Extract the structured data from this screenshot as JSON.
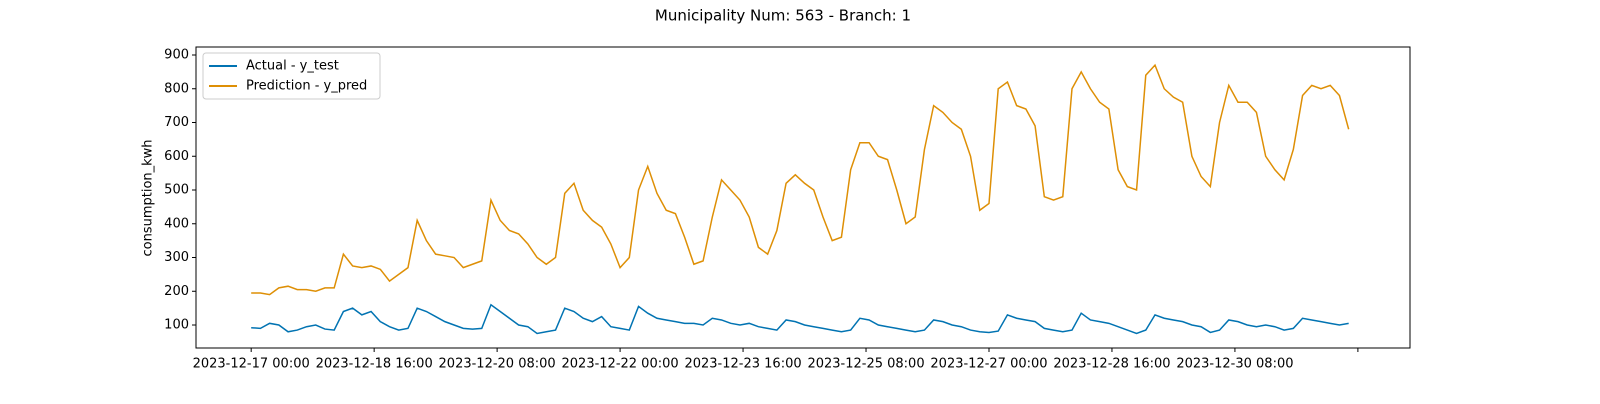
{
  "chart_data": {
    "type": "line",
    "title": "Municipality Num: 563 - Branch: 1",
    "ylabel": "consumption_kwh",
    "x": [
      "2023-12-17 00:00",
      "2023-12-17 03:00",
      "2023-12-17 06:00",
      "2023-12-17 09:00",
      "2023-12-17 12:00",
      "2023-12-17 15:00",
      "2023-12-17 18:00",
      "2023-12-17 21:00",
      "2023-12-18 00:00",
      "2023-12-18 03:00",
      "2023-12-18 06:00",
      "2023-12-18 09:00",
      "2023-12-18 12:00",
      "2023-12-18 15:00",
      "2023-12-18 18:00",
      "2023-12-18 21:00",
      "2023-12-19 00:00",
      "2023-12-19 03:00",
      "2023-12-19 06:00",
      "2023-12-19 09:00",
      "2023-12-19 12:00",
      "2023-12-19 15:00",
      "2023-12-19 18:00",
      "2023-12-19 21:00",
      "2023-12-20 00:00",
      "2023-12-20 03:00",
      "2023-12-20 06:00",
      "2023-12-20 09:00",
      "2023-12-20 12:00",
      "2023-12-20 15:00",
      "2023-12-20 18:00",
      "2023-12-20 21:00",
      "2023-12-21 00:00",
      "2023-12-21 03:00",
      "2023-12-21 06:00",
      "2023-12-21 09:00",
      "2023-12-21 12:00",
      "2023-12-21 15:00",
      "2023-12-21 18:00",
      "2023-12-21 21:00",
      "2023-12-22 00:00",
      "2023-12-22 03:00",
      "2023-12-22 06:00",
      "2023-12-22 09:00",
      "2023-12-22 12:00",
      "2023-12-22 15:00",
      "2023-12-22 18:00",
      "2023-12-22 21:00",
      "2023-12-23 00:00",
      "2023-12-23 03:00",
      "2023-12-23 06:00",
      "2023-12-23 09:00",
      "2023-12-23 12:00",
      "2023-12-23 15:00",
      "2023-12-23 18:00",
      "2023-12-23 21:00",
      "2023-12-24 00:00",
      "2023-12-24 03:00",
      "2023-12-24 06:00",
      "2023-12-24 09:00",
      "2023-12-24 12:00",
      "2023-12-24 15:00",
      "2023-12-24 18:00",
      "2023-12-24 21:00",
      "2023-12-25 00:00",
      "2023-12-25 03:00",
      "2023-12-25 06:00",
      "2023-12-25 09:00",
      "2023-12-25 12:00",
      "2023-12-25 15:00",
      "2023-12-25 18:00",
      "2023-12-25 21:00",
      "2023-12-26 00:00",
      "2023-12-26 03:00",
      "2023-12-26 06:00",
      "2023-12-26 09:00",
      "2023-12-26 12:00",
      "2023-12-26 15:00",
      "2023-12-26 18:00",
      "2023-12-26 21:00",
      "2023-12-27 00:00",
      "2023-12-27 03:00",
      "2023-12-27 06:00",
      "2023-12-27 09:00",
      "2023-12-27 12:00",
      "2023-12-27 15:00",
      "2023-12-27 18:00",
      "2023-12-27 21:00",
      "2023-12-28 00:00",
      "2023-12-28 03:00",
      "2023-12-28 06:00",
      "2023-12-28 09:00",
      "2023-12-28 12:00",
      "2023-12-28 15:00",
      "2023-12-28 18:00",
      "2023-12-28 21:00",
      "2023-12-29 00:00",
      "2023-12-29 03:00",
      "2023-12-29 06:00",
      "2023-12-29 09:00",
      "2023-12-29 12:00",
      "2023-12-29 15:00",
      "2023-12-29 18:00",
      "2023-12-29 21:00",
      "2023-12-30 00:00",
      "2023-12-30 03:00",
      "2023-12-30 06:00",
      "2023-12-30 09:00",
      "2023-12-30 12:00",
      "2023-12-30 15:00",
      "2023-12-30 18:00",
      "2023-12-30 21:00",
      "2023-12-31 00:00",
      "2023-12-31 03:00",
      "2023-12-31 06:00",
      "2023-12-31 09:00",
      "2023-12-31 12:00",
      "2023-12-31 15:00",
      "2023-12-31 18:00",
      "2023-12-31 21:00"
    ],
    "series": [
      {
        "name": "Actual - y_test",
        "color": "#0173b2",
        "values": [
          92,
          90,
          105,
          100,
          80,
          85,
          95,
          100,
          88,
          85,
          140,
          150,
          130,
          140,
          110,
          95,
          85,
          90,
          150,
          140,
          125,
          110,
          100,
          90,
          88,
          90,
          160,
          140,
          120,
          100,
          95,
          75,
          80,
          85,
          150,
          140,
          120,
          110,
          125,
          95,
          90,
          85,
          155,
          135,
          120,
          115,
          110,
          105,
          105,
          100,
          120,
          115,
          105,
          100,
          105,
          95,
          90,
          85,
          115,
          110,
          100,
          95,
          90,
          85,
          80,
          85,
          120,
          115,
          100,
          95,
          90,
          85,
          80,
          85,
          115,
          110,
          100,
          95,
          85,
          80,
          78,
          82,
          130,
          120,
          115,
          110,
          90,
          85,
          80,
          85,
          135,
          115,
          110,
          105,
          95,
          85,
          75,
          85,
          130,
          120,
          115,
          110,
          100,
          95,
          78,
          85,
          115,
          110,
          100,
          95,
          100,
          95,
          85,
          90,
          120,
          115,
          110,
          105,
          100,
          105
        ]
      },
      {
        "name": "Prediction - y_pred",
        "color": "#de8f05",
        "values": [
          195,
          195,
          190,
          210,
          215,
          205,
          205,
          200,
          210,
          210,
          310,
          275,
          270,
          275,
          265,
          230,
          250,
          270,
          410,
          350,
          310,
          305,
          300,
          270,
          280,
          290,
          470,
          410,
          380,
          370,
          340,
          300,
          280,
          300,
          490,
          520,
          440,
          410,
          390,
          340,
          270,
          300,
          500,
          570,
          490,
          440,
          430,
          360,
          280,
          290,
          420,
          530,
          500,
          470,
          420,
          330,
          310,
          380,
          520,
          545,
          520,
          500,
          420,
          350,
          360,
          560,
          640,
          640,
          600,
          590,
          500,
          400,
          420,
          620,
          750,
          730,
          700,
          680,
          600,
          440,
          460,
          800,
          820,
          750,
          740,
          690,
          480,
          470,
          480,
          800,
          850,
          800,
          760,
          740,
          560,
          510,
          500,
          840,
          870,
          800,
          775,
          760,
          600,
          540,
          510,
          700,
          810,
          760,
          760,
          730,
          600,
          560,
          530,
          620,
          780,
          810,
          800,
          810,
          780,
          680
        ]
      }
    ],
    "xlim": [
      "2023-12-16 06:03",
      "2024-01-01 16:57"
    ],
    "xticks": [
      "2023-12-17 00:00",
      "2023-12-18 16:00",
      "2023-12-20 08:00",
      "2023-12-22 00:00",
      "2023-12-23 16:00",
      "2023-12-25 08:00",
      "2023-12-27 00:00",
      "2023-12-28 16:00",
      "2023-12-30 08:00",
      {
        "value": "2024-01-01 00:00",
        "label": null
      }
    ],
    "ylim": [
      31.9,
      923.7
    ],
    "yticks": [
      100,
      200,
      300,
      400,
      500,
      600,
      700,
      800,
      900
    ],
    "legend": "upper left"
  }
}
